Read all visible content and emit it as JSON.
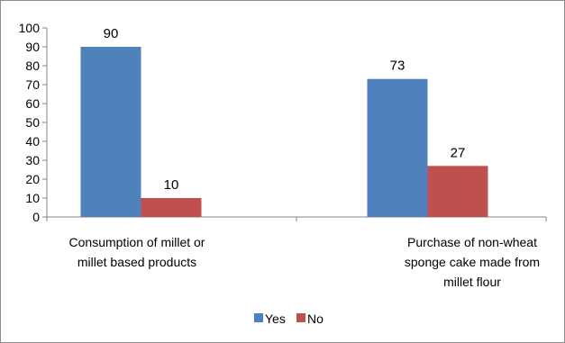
{
  "chart_data": {
    "type": "bar",
    "categories": [
      [
        "Consumption of millet or",
        "millet based products"
      ],
      [
        "Purchase of non-wheat",
        "sponge cake made from",
        "millet flour"
      ]
    ],
    "series": [
      {
        "name": "Yes",
        "color": "#4f81bd",
        "values": [
          90,
          73
        ]
      },
      {
        "name": "No",
        "color": "#c0504d",
        "values": [
          10,
          27
        ]
      }
    ],
    "data_labels": [
      [
        "90",
        "10"
      ],
      [
        "73",
        "27"
      ]
    ],
    "yticks": [
      "0",
      "10",
      "20",
      "30",
      "40",
      "50",
      "60",
      "70",
      "80",
      "90",
      "100"
    ],
    "ylim": [
      0,
      100
    ],
    "grid": false,
    "legend": "bottom",
    "title": "",
    "xlabel": "",
    "ylabel": ""
  }
}
